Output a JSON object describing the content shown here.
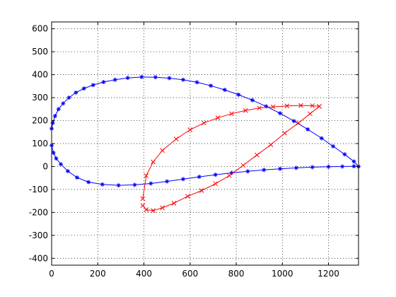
{
  "chart_data": {
    "type": "scatter",
    "xlim": [
      0,
      1330
    ],
    "ylim": [
      -430,
      630
    ],
    "xticks": [
      0,
      200,
      400,
      600,
      800,
      1000,
      1200
    ],
    "yticks": [
      -400,
      -300,
      -200,
      -100,
      0,
      100,
      200,
      300,
      400,
      500,
      600
    ],
    "grid": true,
    "series": [
      {
        "color": "#0000ff",
        "marker": "star",
        "line": true,
        "x": [
          0,
          5,
          15,
          30,
          50,
          75,
          105,
          140,
          180,
          225,
          275,
          330,
          390,
          450,
          510,
          570,
          630,
          690,
          750,
          810,
          870,
          930,
          990,
          1050,
          1110,
          1170,
          1220,
          1270,
          1310,
          1330
        ],
        "y": [
          165,
          190,
          220,
          250,
          275,
          300,
          322,
          340,
          355,
          368,
          378,
          386,
          390,
          389,
          385,
          378,
          367,
          352,
          334,
          313,
          289,
          262,
          232,
          198,
          162,
          123,
          88,
          53,
          22,
          0
        ]
      },
      {
        "color": "#0000ff",
        "marker": "star",
        "line": true,
        "x": [
          0,
          8,
          20,
          40,
          70,
          110,
          160,
          220,
          290,
          360,
          430,
          500,
          570,
          640,
          710,
          780,
          850,
          920,
          990,
          1060,
          1130,
          1200,
          1260,
          1310,
          1330
        ],
        "y": [
          92,
          60,
          35,
          10,
          -20,
          -48,
          -68,
          -78,
          -82,
          -80,
          -74,
          -65,
          -55,
          -45,
          -36,
          -28,
          -21,
          -15,
          -10,
          -6,
          -3,
          -1,
          0,
          1,
          0
        ]
      },
      {
        "color": "#ff0000",
        "marker": "x",
        "line": true,
        "x": [
          395,
          410,
          440,
          480,
          540,
          600,
          660,
          720,
          780,
          840,
          900,
          960,
          1020,
          1080,
          1130,
          1160
        ],
        "y": [
          -140,
          -40,
          20,
          70,
          120,
          160,
          190,
          212,
          230,
          244,
          255,
          260,
          264,
          266,
          265,
          262
        ]
      },
      {
        "color": "#ff0000",
        "marker": "x",
        "line": true,
        "x": [
          1160,
          1120,
          1070,
          1010,
          950,
          890,
          830,
          770,
          710,
          650,
          590,
          530,
          480,
          440,
          410,
          395
        ],
        "y": [
          262,
          230,
          190,
          145,
          95,
          50,
          5,
          -40,
          -75,
          -105,
          -130,
          -160,
          -180,
          -192,
          -188,
          -170
        ]
      }
    ]
  }
}
